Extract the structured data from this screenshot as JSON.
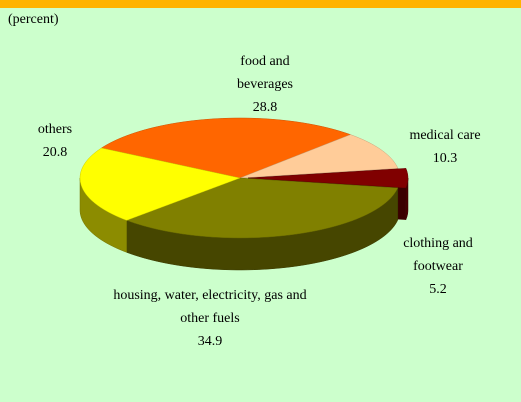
{
  "chart_data": {
    "type": "pie3d",
    "subtitle": "(percent)",
    "categories": [
      "food and beverages",
      "medical care",
      "clothing and footwear",
      "housing, water, electricity, gas and other fuels",
      "others"
    ],
    "values": [
      28.8,
      10.3,
      5.2,
      34.9,
      20.8
    ],
    "colors": [
      "#ff6600",
      "#ffcc99",
      "#800000",
      "#808000",
      "#ffff00"
    ]
  }
}
